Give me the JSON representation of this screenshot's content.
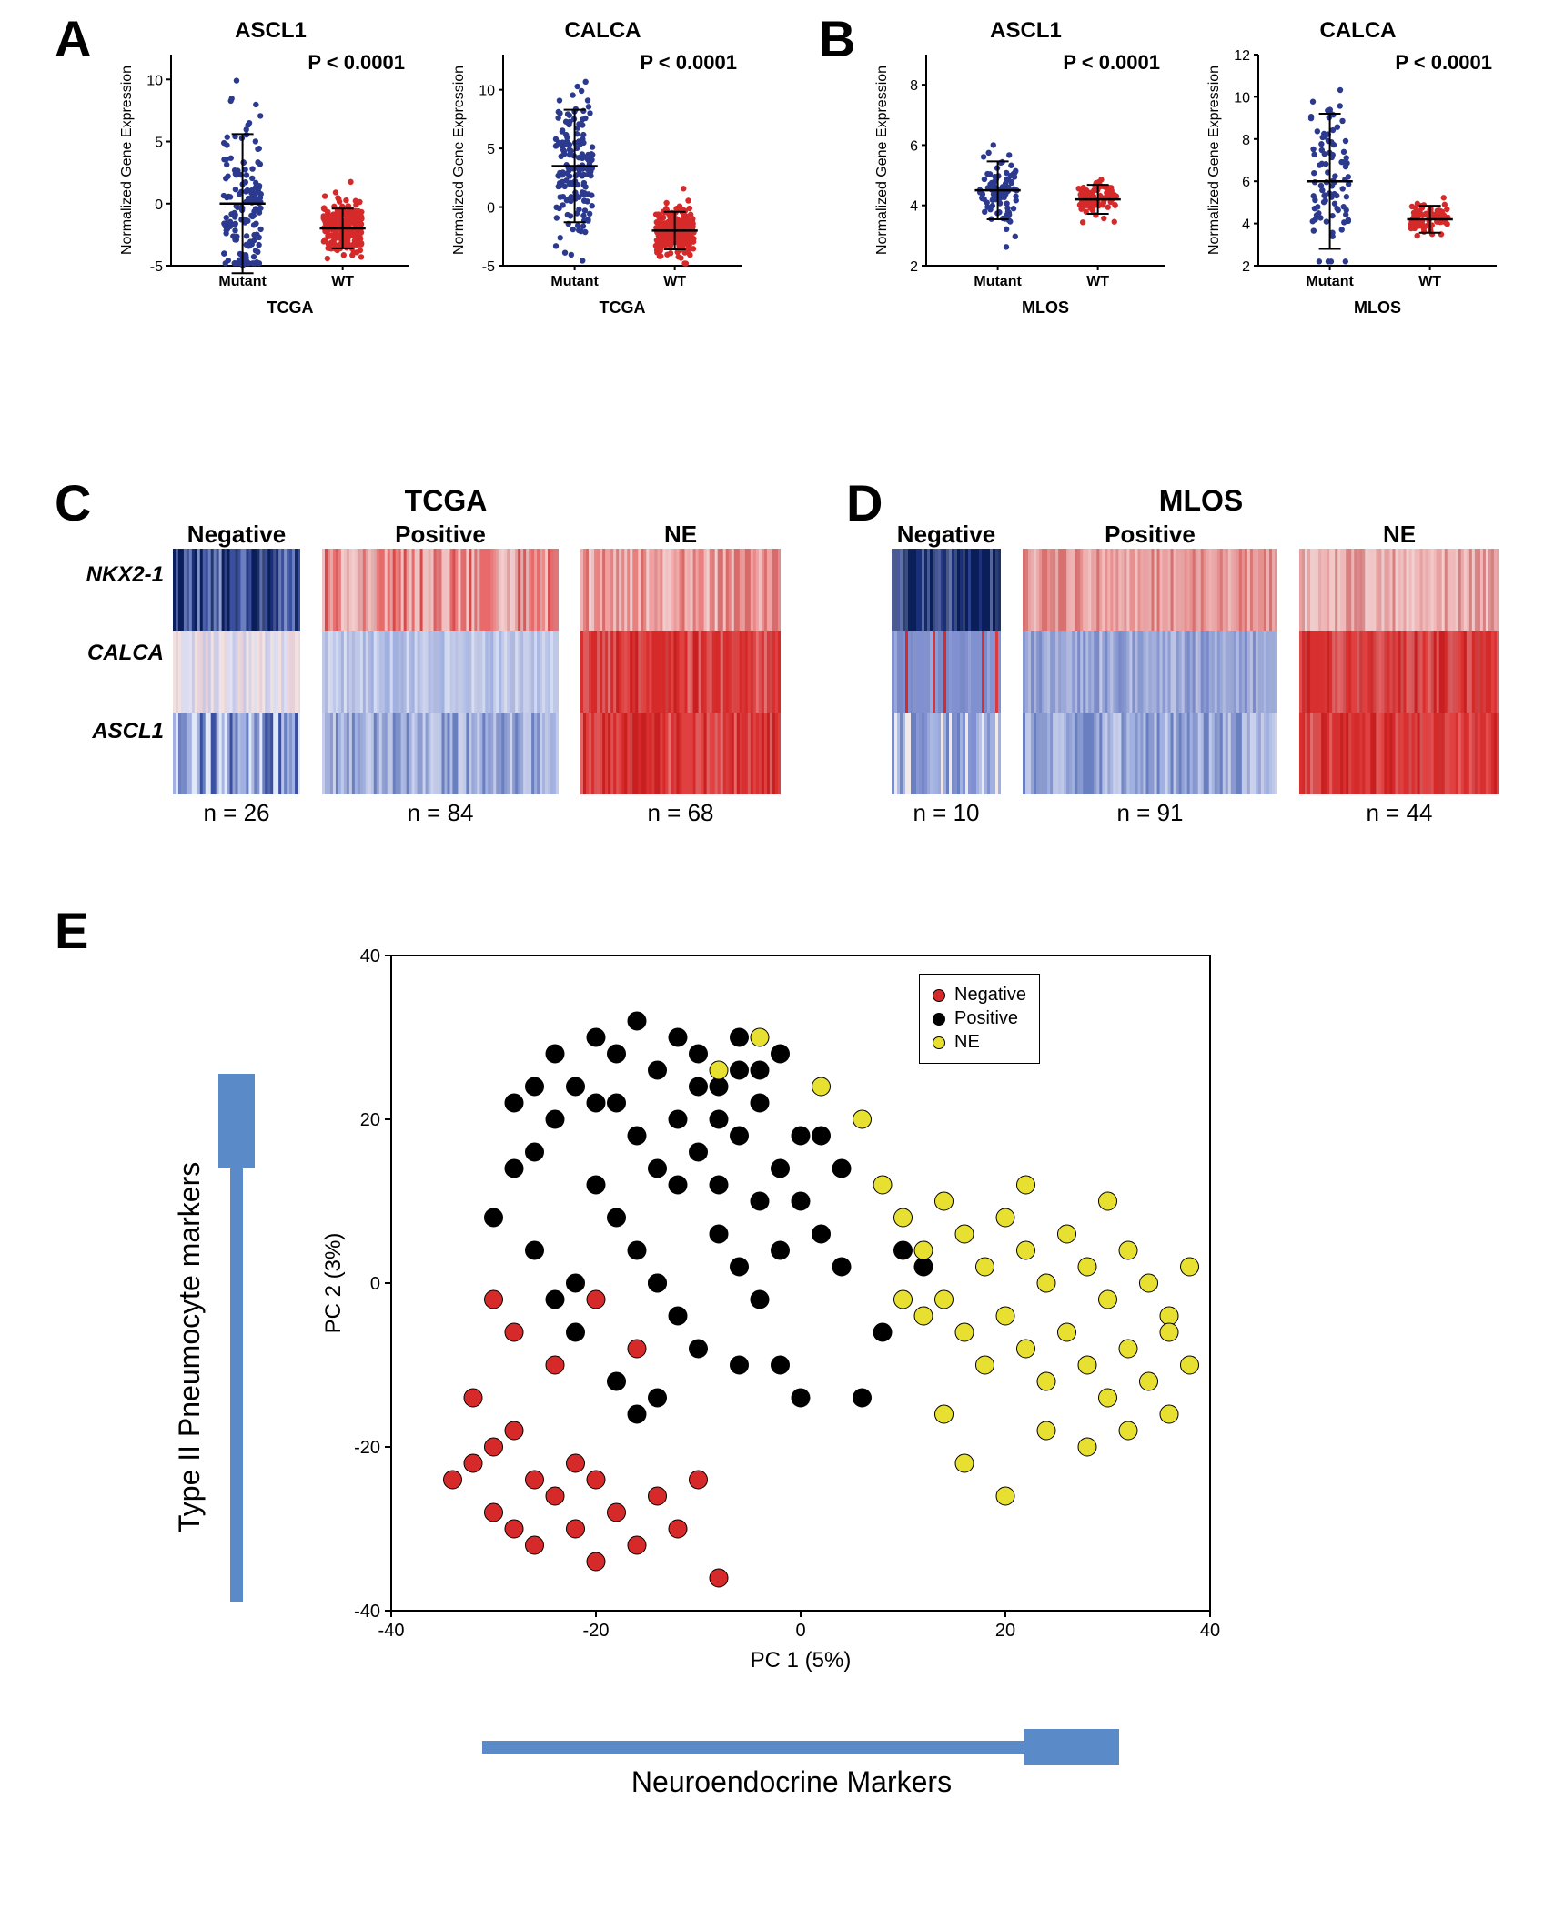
{
  "panelA": {
    "label": "A",
    "charts": [
      {
        "title": "ASCL1",
        "pvalue": "P < 0.0001",
        "ylabel": "Normalized Gene Expression",
        "ylim": [
          -5,
          12
        ],
        "ytick_step": 5,
        "xlabel": "TCGA",
        "groups": [
          "Mutant",
          "WT"
        ],
        "group_colors": [
          "#2b3a8f",
          "#d62a2a"
        ],
        "mutant_mean": 0,
        "mutant_sd": 7,
        "wt_mean": -2,
        "wt_sd": 2,
        "mutant_n": 160,
        "wt_n": 260
      },
      {
        "title": "CALCA",
        "pvalue": "P < 0.0001",
        "ylabel": "Normalized Gene Expression",
        "ylim": [
          -5,
          13
        ],
        "ytick_step": 5,
        "xlabel": "TCGA",
        "groups": [
          "Mutant",
          "WT"
        ],
        "group_colors": [
          "#2b3a8f",
          "#d62a2a"
        ],
        "mutant_mean": 3.5,
        "mutant_sd": 6,
        "wt_mean": -2,
        "wt_sd": 2,
        "mutant_n": 160,
        "wt_n": 260
      }
    ]
  },
  "panelB": {
    "label": "B",
    "charts": [
      {
        "title": "ASCL1",
        "pvalue": "P < 0.0001",
        "ylabel": "Normalized Gene Expression",
        "ylim": [
          2,
          9
        ],
        "ytick_step": 2,
        "xlabel": "MLOS",
        "groups": [
          "Mutant",
          "WT"
        ],
        "group_colors": [
          "#2b3a8f",
          "#d62a2a"
        ],
        "mutant_mean": 4.5,
        "mutant_sd": 1.2,
        "wt_mean": 4.2,
        "wt_sd": 0.6,
        "mutant_n": 90,
        "wt_n": 85
      },
      {
        "title": "CALCA",
        "pvalue": "P < 0.0001",
        "ylabel": "Normalized Gene Expression",
        "ylim": [
          2,
          12
        ],
        "ytick_step": 2,
        "xlabel": "MLOS",
        "groups": [
          "Mutant",
          "WT"
        ],
        "group_colors": [
          "#2b3a8f",
          "#d62a2a"
        ],
        "mutant_mean": 6,
        "mutant_sd": 4,
        "wt_mean": 4.2,
        "wt_sd": 0.8,
        "mutant_n": 90,
        "wt_n": 85
      }
    ]
  },
  "panelC": {
    "label": "C",
    "cohort": "TCGA",
    "row_labels": [
      "NKX2-1",
      "CALCA",
      "ASCL1"
    ],
    "columns": [
      {
        "title": "Negative",
        "n": "n = 26",
        "palette": [
          [
            "#0a1f5a",
            "#1a2f7a",
            "#3a4fa0",
            "#6a7fc0"
          ],
          [
            "#c8c8e8",
            "#dcdcf0",
            "#f0e0e0",
            "#e8d0d8"
          ],
          [
            "#3a4fa0",
            "#6a7fc0",
            "#a0b0e0",
            "#e0e8f8"
          ]
        ]
      },
      {
        "title": "Positive",
        "n": "n = 84",
        "palette": [
          [
            "#e86a6a",
            "#d84a4a",
            "#f0c0c0",
            "#e0a0a0"
          ],
          [
            "#a0b0e0",
            "#c0c8e8",
            "#d0d8f0",
            "#b0b8e0"
          ],
          [
            "#6a7fc0",
            "#8a9ad0",
            "#c0c8e8",
            "#a0b0e0"
          ]
        ]
      },
      {
        "title": "NE",
        "n": "n = 68",
        "palette": [
          [
            "#f0a0a0",
            "#e88080",
            "#f0c0c0",
            "#d86a6a"
          ],
          [
            "#d62a2a",
            "#e04040",
            "#d83030",
            "#c82020"
          ],
          [
            "#d62a2a",
            "#e04040",
            "#d83030",
            "#c82020"
          ]
        ]
      }
    ],
    "color_low": "#0a1f5a",
    "color_mid": "#f0f0f5",
    "color_high": "#d62a2a"
  },
  "panelD": {
    "label": "D",
    "cohort": "MLOS",
    "row_labels": [
      "NKX2-1",
      "CALCA",
      "ASCL1"
    ],
    "columns": [
      {
        "title": "Negative",
        "n": "n = 10",
        "palette": [
          [
            "#0a1f5a",
            "#1a2f7a",
            "#0a1f5a",
            "#2a3f8a"
          ],
          [
            "#d62a2a",
            "#8090d0",
            "#7a8ac8",
            "#8090d0"
          ],
          [
            "#6a7fc0",
            "#8090d0",
            "#a0b0e0",
            "#f0e8e8"
          ]
        ]
      },
      {
        "title": "Positive",
        "n": "n = 91",
        "palette": [
          [
            "#f0b0b0",
            "#e89090",
            "#e8a0a0",
            "#d87070"
          ],
          [
            "#7a8ac8",
            "#9aa8d8",
            "#b0b8e0",
            "#8898d0"
          ],
          [
            "#6a7fc0",
            "#8a9ad0",
            "#a0b0e0",
            "#c0c8e8"
          ]
        ]
      },
      {
        "title": "NE",
        "n": "n = 44",
        "palette": [
          [
            "#f0b8b8",
            "#e8a0a0",
            "#f0c8c8",
            "#d88080"
          ],
          [
            "#d62a2a",
            "#e04040",
            "#d83030",
            "#c82020"
          ],
          [
            "#d62a2a",
            "#e04040",
            "#d83030",
            "#c82020"
          ]
        ]
      }
    ],
    "color_low": "#0a1f5a",
    "color_mid": "#f0f0f5",
    "color_high": "#d62a2a"
  },
  "panelE": {
    "label": "E",
    "xlabel": "PC 1 (5%)",
    "ylabel": "PC 2 (3%)",
    "xlim": [
      -40,
      40
    ],
    "xtick_step": 20,
    "ylim": [
      -40,
      40
    ],
    "ytick_step": 20,
    "arrow_x_label": "Neuroendocrine Markers",
    "arrow_y_label": "Type II Pneumocyte markers",
    "arrow_color": "#5a8ac8",
    "legend": [
      {
        "label": "Negative",
        "color": "#d62a2a"
      },
      {
        "label": "Positive",
        "color": "#000000"
      },
      {
        "label": "NE",
        "color": "#e8e030"
      }
    ],
    "points": {
      "Negative": [
        [
          -32,
          -22
        ],
        [
          -30,
          -28
        ],
        [
          -28,
          -30
        ],
        [
          -26,
          -32
        ],
        [
          -24,
          -26
        ],
        [
          -22,
          -30
        ],
        [
          -20,
          -34
        ],
        [
          -18,
          -28
        ],
        [
          -16,
          -32
        ],
        [
          -30,
          -20
        ],
        [
          -34,
          -24
        ],
        [
          -26,
          -24
        ],
        [
          -22,
          -22
        ],
        [
          -14,
          -26
        ],
        [
          -12,
          -30
        ],
        [
          -10,
          -24
        ],
        [
          -8,
          -36
        ],
        [
          -28,
          -18
        ],
        [
          -20,
          -24
        ],
        [
          -16,
          -8
        ],
        [
          -24,
          -10
        ],
        [
          -20,
          -2
        ],
        [
          -14,
          0
        ],
        [
          -28,
          -6
        ],
        [
          -32,
          -14
        ],
        [
          -30,
          -2
        ]
      ],
      "Positive": [
        [
          -20,
          30
        ],
        [
          -18,
          28
        ],
        [
          -16,
          32
        ],
        [
          -14,
          26
        ],
        [
          -12,
          30
        ],
        [
          -10,
          28
        ],
        [
          -8,
          24
        ],
        [
          -6,
          30
        ],
        [
          -4,
          26
        ],
        [
          -2,
          28
        ],
        [
          0,
          18
        ],
        [
          -22,
          24
        ],
        [
          -24,
          20
        ],
        [
          -26,
          16
        ],
        [
          -20,
          12
        ],
        [
          -18,
          8
        ],
        [
          -16,
          4
        ],
        [
          -14,
          0
        ],
        [
          -12,
          -4
        ],
        [
          -10,
          -8
        ],
        [
          -8,
          6
        ],
        [
          -6,
          2
        ],
        [
          -4,
          -2
        ],
        [
          -2,
          14
        ],
        [
          0,
          10
        ],
        [
          2,
          6
        ],
        [
          4,
          2
        ],
        [
          -28,
          14
        ],
        [
          -30,
          8
        ],
        [
          -26,
          4
        ],
        [
          -24,
          -2
        ],
        [
          -22,
          -6
        ],
        [
          -18,
          22
        ],
        [
          -16,
          18
        ],
        [
          -14,
          14
        ],
        [
          -12,
          20
        ],
        [
          -10,
          16
        ],
        [
          -8,
          12
        ],
        [
          -6,
          18
        ],
        [
          -4,
          22
        ],
        [
          6,
          -14
        ],
        [
          8,
          -6
        ],
        [
          10,
          4
        ],
        [
          -2,
          -10
        ],
        [
          -14,
          -14
        ],
        [
          -6,
          -10
        ],
        [
          -18,
          -12
        ],
        [
          2,
          18
        ],
        [
          -24,
          28
        ],
        [
          -20,
          22
        ],
        [
          -4,
          10
        ],
        [
          -10,
          24
        ],
        [
          -6,
          26
        ],
        [
          12,
          2
        ],
        [
          -12,
          12
        ],
        [
          -8,
          20
        ],
        [
          0,
          -14
        ],
        [
          4,
          14
        ],
        [
          -2,
          4
        ],
        [
          -26,
          24
        ],
        [
          -16,
          -16
        ],
        [
          -28,
          22
        ],
        [
          -22,
          0
        ]
      ],
      "NE": [
        [
          8,
          12
        ],
        [
          10,
          8
        ],
        [
          12,
          4
        ],
        [
          14,
          10
        ],
        [
          16,
          6
        ],
        [
          18,
          2
        ],
        [
          20,
          8
        ],
        [
          22,
          4
        ],
        [
          24,
          0
        ],
        [
          26,
          6
        ],
        [
          28,
          2
        ],
        [
          30,
          -2
        ],
        [
          32,
          4
        ],
        [
          34,
          0
        ],
        [
          36,
          -4
        ],
        [
          38,
          2
        ],
        [
          14,
          -2
        ],
        [
          16,
          -6
        ],
        [
          18,
          -10
        ],
        [
          20,
          -4
        ],
        [
          22,
          -8
        ],
        [
          24,
          -12
        ],
        [
          26,
          -6
        ],
        [
          28,
          -10
        ],
        [
          30,
          -14
        ],
        [
          32,
          -8
        ],
        [
          34,
          -12
        ],
        [
          36,
          -16
        ],
        [
          38,
          -10
        ],
        [
          12,
          -4
        ],
        [
          16,
          -22
        ],
        [
          20,
          -26
        ],
        [
          24,
          -18
        ],
        [
          28,
          -20
        ],
        [
          32,
          -18
        ],
        [
          36,
          -6
        ],
        [
          10,
          -2
        ],
        [
          14,
          -16
        ],
        [
          22,
          12
        ],
        [
          30,
          10
        ],
        [
          6,
          20
        ],
        [
          -4,
          30
        ],
        [
          -8,
          26
        ],
        [
          2,
          24
        ]
      ]
    },
    "marker_size": 10
  }
}
